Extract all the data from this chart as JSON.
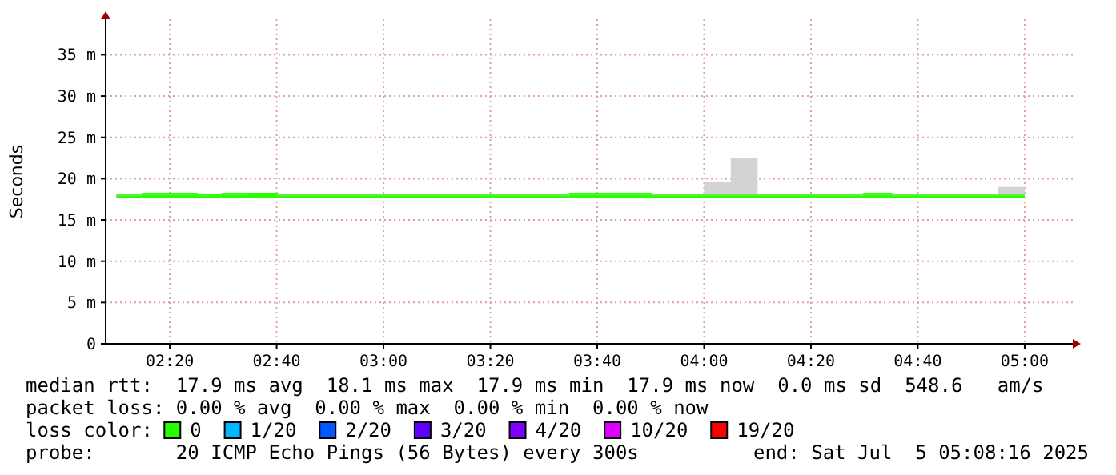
{
  "chart_data": {
    "type": "step",
    "ylabel": "Seconds",
    "x": [
      "2025-07-05T02:10",
      "2025-07-05T02:15",
      "2025-07-05T02:20",
      "2025-07-05T02:25",
      "2025-07-05T02:30",
      "2025-07-05T02:35",
      "2025-07-05T02:40",
      "2025-07-05T02:45",
      "2025-07-05T02:50",
      "2025-07-05T02:55",
      "2025-07-05T03:00",
      "2025-07-05T03:05",
      "2025-07-05T03:10",
      "2025-07-05T03:15",
      "2025-07-05T03:20",
      "2025-07-05T03:25",
      "2025-07-05T03:30",
      "2025-07-05T03:35",
      "2025-07-05T03:40",
      "2025-07-05T03:45",
      "2025-07-05T03:50",
      "2025-07-05T03:55",
      "2025-07-05T04:00",
      "2025-07-05T04:05",
      "2025-07-05T04:10",
      "2025-07-05T04:15",
      "2025-07-05T04:20",
      "2025-07-05T04:25",
      "2025-07-05T04:30",
      "2025-07-05T04:35",
      "2025-07-05T04:40",
      "2025-07-05T04:45",
      "2025-07-05T04:50",
      "2025-07-05T04:55",
      "2025-07-05T05:00"
    ],
    "series": [
      {
        "name": "0",
        "color": "#26ff00",
        "values": [
          17.9,
          17.9,
          18.0,
          18.0,
          17.9,
          18.0,
          18.0,
          17.9,
          17.9,
          17.9,
          17.9,
          17.9,
          17.9,
          17.9,
          17.9,
          17.9,
          17.9,
          17.9,
          18.0,
          18.0,
          18.0,
          17.9,
          17.9,
          17.9,
          17.9,
          17.9,
          17.9,
          17.9,
          17.9,
          18.0,
          17.9,
          17.9,
          17.9,
          17.9,
          17.9
        ],
        "lower": [
          17.9,
          17.9,
          18.0,
          18.0,
          17.9,
          18.0,
          18.0,
          17.9,
          17.9,
          17.9,
          17.9,
          17.9,
          17.9,
          17.9,
          17.9,
          17.9,
          17.9,
          17.9,
          18.0,
          18.0,
          18.0,
          17.9,
          17.9,
          17.9,
          17.9,
          17.9,
          17.9,
          17.9,
          17.9,
          18.0,
          17.9,
          17.9,
          17.9,
          17.9,
          17.9
        ],
        "upper": [
          18.1,
          18.1,
          18.2,
          18.2,
          18.0,
          18.1,
          18.0,
          18.2,
          18.2,
          18.2,
          18.2,
          18.2,
          18.2,
          18.2,
          18.2,
          18.2,
          18.2,
          18.2,
          18.2,
          18.1,
          18.1,
          18.1,
          18.1,
          19.6,
          22.5,
          18.1,
          18.1,
          18.2,
          18.2,
          18.2,
          18.2,
          18.2,
          18.2,
          18.2,
          19.0
        ]
      },
      {
        "name": "1/20",
        "color": "#00b8ff",
        "values": [
          null,
          null,
          null,
          null,
          null,
          null,
          null,
          null,
          null,
          null,
          null,
          null,
          null,
          null,
          null,
          null,
          null,
          null,
          null,
          null,
          null,
          null,
          null,
          null,
          null,
          null,
          null,
          null,
          null,
          null,
          null,
          null,
          null,
          null,
          null
        ]
      },
      {
        "name": "2/20",
        "color": "#0059ff",
        "values": [
          null,
          null,
          null,
          null,
          null,
          null,
          null,
          null,
          null,
          null,
          null,
          null,
          null,
          null,
          null,
          null,
          null,
          null,
          null,
          null,
          null,
          null,
          null,
          null,
          null,
          null,
          null,
          null,
          null,
          null,
          null,
          null,
          null,
          null,
          null
        ]
      },
      {
        "name": "3/20",
        "color": "#5e00ff",
        "values": [
          null,
          null,
          null,
          null,
          null,
          null,
          null,
          null,
          null,
          null,
          null,
          null,
          null,
          null,
          null,
          null,
          null,
          null,
          null,
          null,
          null,
          null,
          null,
          null,
          null,
          null,
          null,
          null,
          null,
          null,
          null,
          null,
          null,
          null,
          null
        ]
      },
      {
        "name": "4/20",
        "color": "#7e00ff",
        "values": [
          null,
          null,
          null,
          null,
          null,
          null,
          null,
          null,
          null,
          null,
          null,
          null,
          null,
          null,
          null,
          null,
          null,
          null,
          null,
          null,
          null,
          null,
          null,
          null,
          null,
          null,
          null,
          null,
          null,
          null,
          null,
          null,
          null,
          null,
          null
        ]
      },
      {
        "name": "10/20",
        "color": "#dd00ff",
        "values": [
          null,
          null,
          null,
          null,
          null,
          null,
          null,
          null,
          null,
          null,
          null,
          null,
          null,
          null,
          null,
          null,
          null,
          null,
          null,
          null,
          null,
          null,
          null,
          null,
          null,
          null,
          null,
          null,
          null,
          null,
          null,
          null,
          null,
          null,
          null
        ]
      },
      {
        "name": "19/20",
        "color": "#ff0000",
        "values": [
          null,
          null,
          null,
          null,
          null,
          null,
          null,
          null,
          null,
          null,
          null,
          null,
          null,
          null,
          null,
          null,
          null,
          null,
          null,
          null,
          null,
          null,
          null,
          null,
          null,
          null,
          null,
          null,
          null,
          null,
          null,
          null,
          null,
          null,
          null
        ]
      }
    ],
    "xlim": [
      "2025-07-05T02:08",
      "2025-07-05T05:09"
    ],
    "xticks": [
      {
        "value": "2025-07-05T02:20",
        "label": "02:20"
      },
      {
        "value": "2025-07-05T02:40",
        "label": "02:40"
      },
      {
        "value": "2025-07-05T03:00",
        "label": "03:00"
      },
      {
        "value": "2025-07-05T03:20",
        "label": "03:20"
      },
      {
        "value": "2025-07-05T03:40",
        "label": "03:40"
      },
      {
        "value": "2025-07-05T04:00",
        "label": "04:00"
      },
      {
        "value": "2025-07-05T04:20",
        "label": "04:20"
      },
      {
        "value": "2025-07-05T04:40",
        "label": "04:40"
      },
      {
        "value": "2025-07-05T05:00",
        "label": "05:00"
      }
    ],
    "ylim": [
      0,
      39.3
    ],
    "yticks": [
      0,
      {
        "value": 5,
        "label": "5 m"
      },
      {
        "value": 10,
        "label": "10 m"
      },
      {
        "value": 15,
        "label": "15 m"
      },
      {
        "value": 20,
        "label": "20 m"
      },
      {
        "value": 25,
        "label": "25 m"
      },
      {
        "value": 30,
        "label": "30 m"
      },
      {
        "value": 35,
        "label": "35 m"
      }
    ],
    "grid": true,
    "legend": "bottom",
    "line_style": "solid",
    "annotations": [
      "median rtt:  17.9 ms avg  18.1 ms max  17.9 ms min  17.9 ms now  0.0 ms sd  548.6   am/s",
      "packet loss: 0.00 % avg  0.00 % max  0.00 % min  0.00 % now",
      "loss color:",
      "probe:       20 ICMP Echo Pings (56 Bytes) every 300s",
      "end: Sat Jul  5 05:08:16 2025"
    ]
  }
}
